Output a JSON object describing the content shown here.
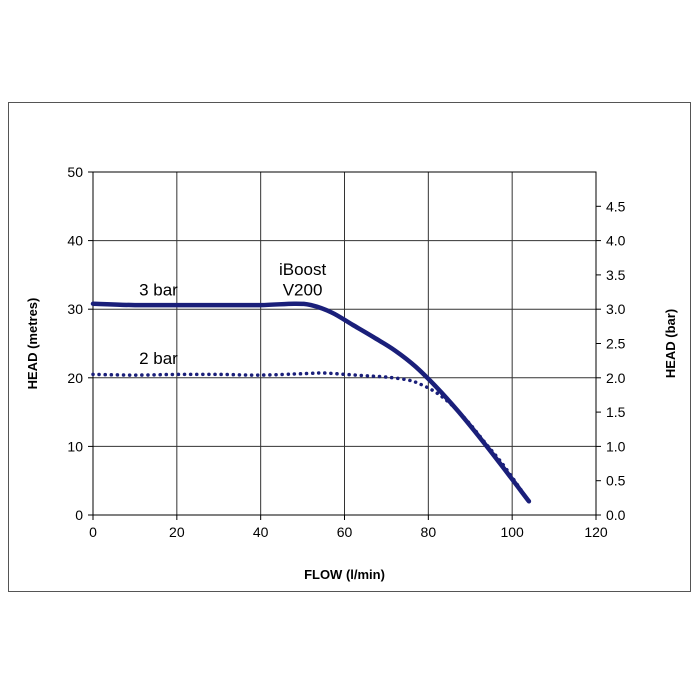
{
  "chart_data": {
    "type": "line",
    "xlabel": "FLOW (l/min)",
    "ylabel": "HEAD (metres)",
    "y2label": "HEAD (bar)",
    "xlim": [
      0,
      120
    ],
    "ylim": [
      0,
      50
    ],
    "y2lim": [
      0,
      5
    ],
    "xticks": [
      "0",
      "20",
      "40",
      "60",
      "80",
      "100",
      "120"
    ],
    "yticks": [
      "0",
      "10",
      "20",
      "30",
      "40",
      "50"
    ],
    "y2ticks": [
      "0.0",
      "0.5",
      "1.0",
      "1.5",
      "2.0",
      "2.5",
      "3.0",
      "3.5",
      "4.0",
      "4.5"
    ],
    "grid": true,
    "annotations": [
      {
        "text": "3 bar",
        "x": 11,
        "y": 32
      },
      {
        "text": "2 bar",
        "x": 11,
        "y": 22
      },
      {
        "text": "iBoost",
        "x": 50,
        "y": 35
      },
      {
        "text": "V200",
        "x": 50,
        "y": 32
      }
    ],
    "series": [
      {
        "label": "3 bar",
        "style": "solid",
        "color": "#1a1f7a",
        "x": [
          0,
          10,
          20,
          30,
          40,
          48,
          52,
          57,
          62,
          67,
          72,
          77,
          82,
          87,
          92,
          97,
          104
        ],
        "y": [
          30.8,
          30.6,
          30.6,
          30.6,
          30.6,
          30.8,
          30.6,
          29.5,
          27.7,
          25.9,
          24.0,
          21.6,
          18.6,
          15.2,
          11.5,
          7.6,
          2.0
        ]
      },
      {
        "label": "2 bar",
        "style": "dotted",
        "color": "#1a1f7a",
        "x": [
          0,
          10,
          20,
          30,
          40,
          50,
          55,
          60,
          65,
          70,
          75,
          78,
          82,
          86,
          90,
          94,
          98,
          104
        ],
        "y": [
          20.5,
          20.4,
          20.5,
          20.5,
          20.4,
          20.6,
          20.7,
          20.5,
          20.3,
          20.1,
          19.7,
          19.1,
          17.8,
          15.8,
          13.2,
          10.2,
          7.2,
          2.0
        ]
      }
    ]
  }
}
